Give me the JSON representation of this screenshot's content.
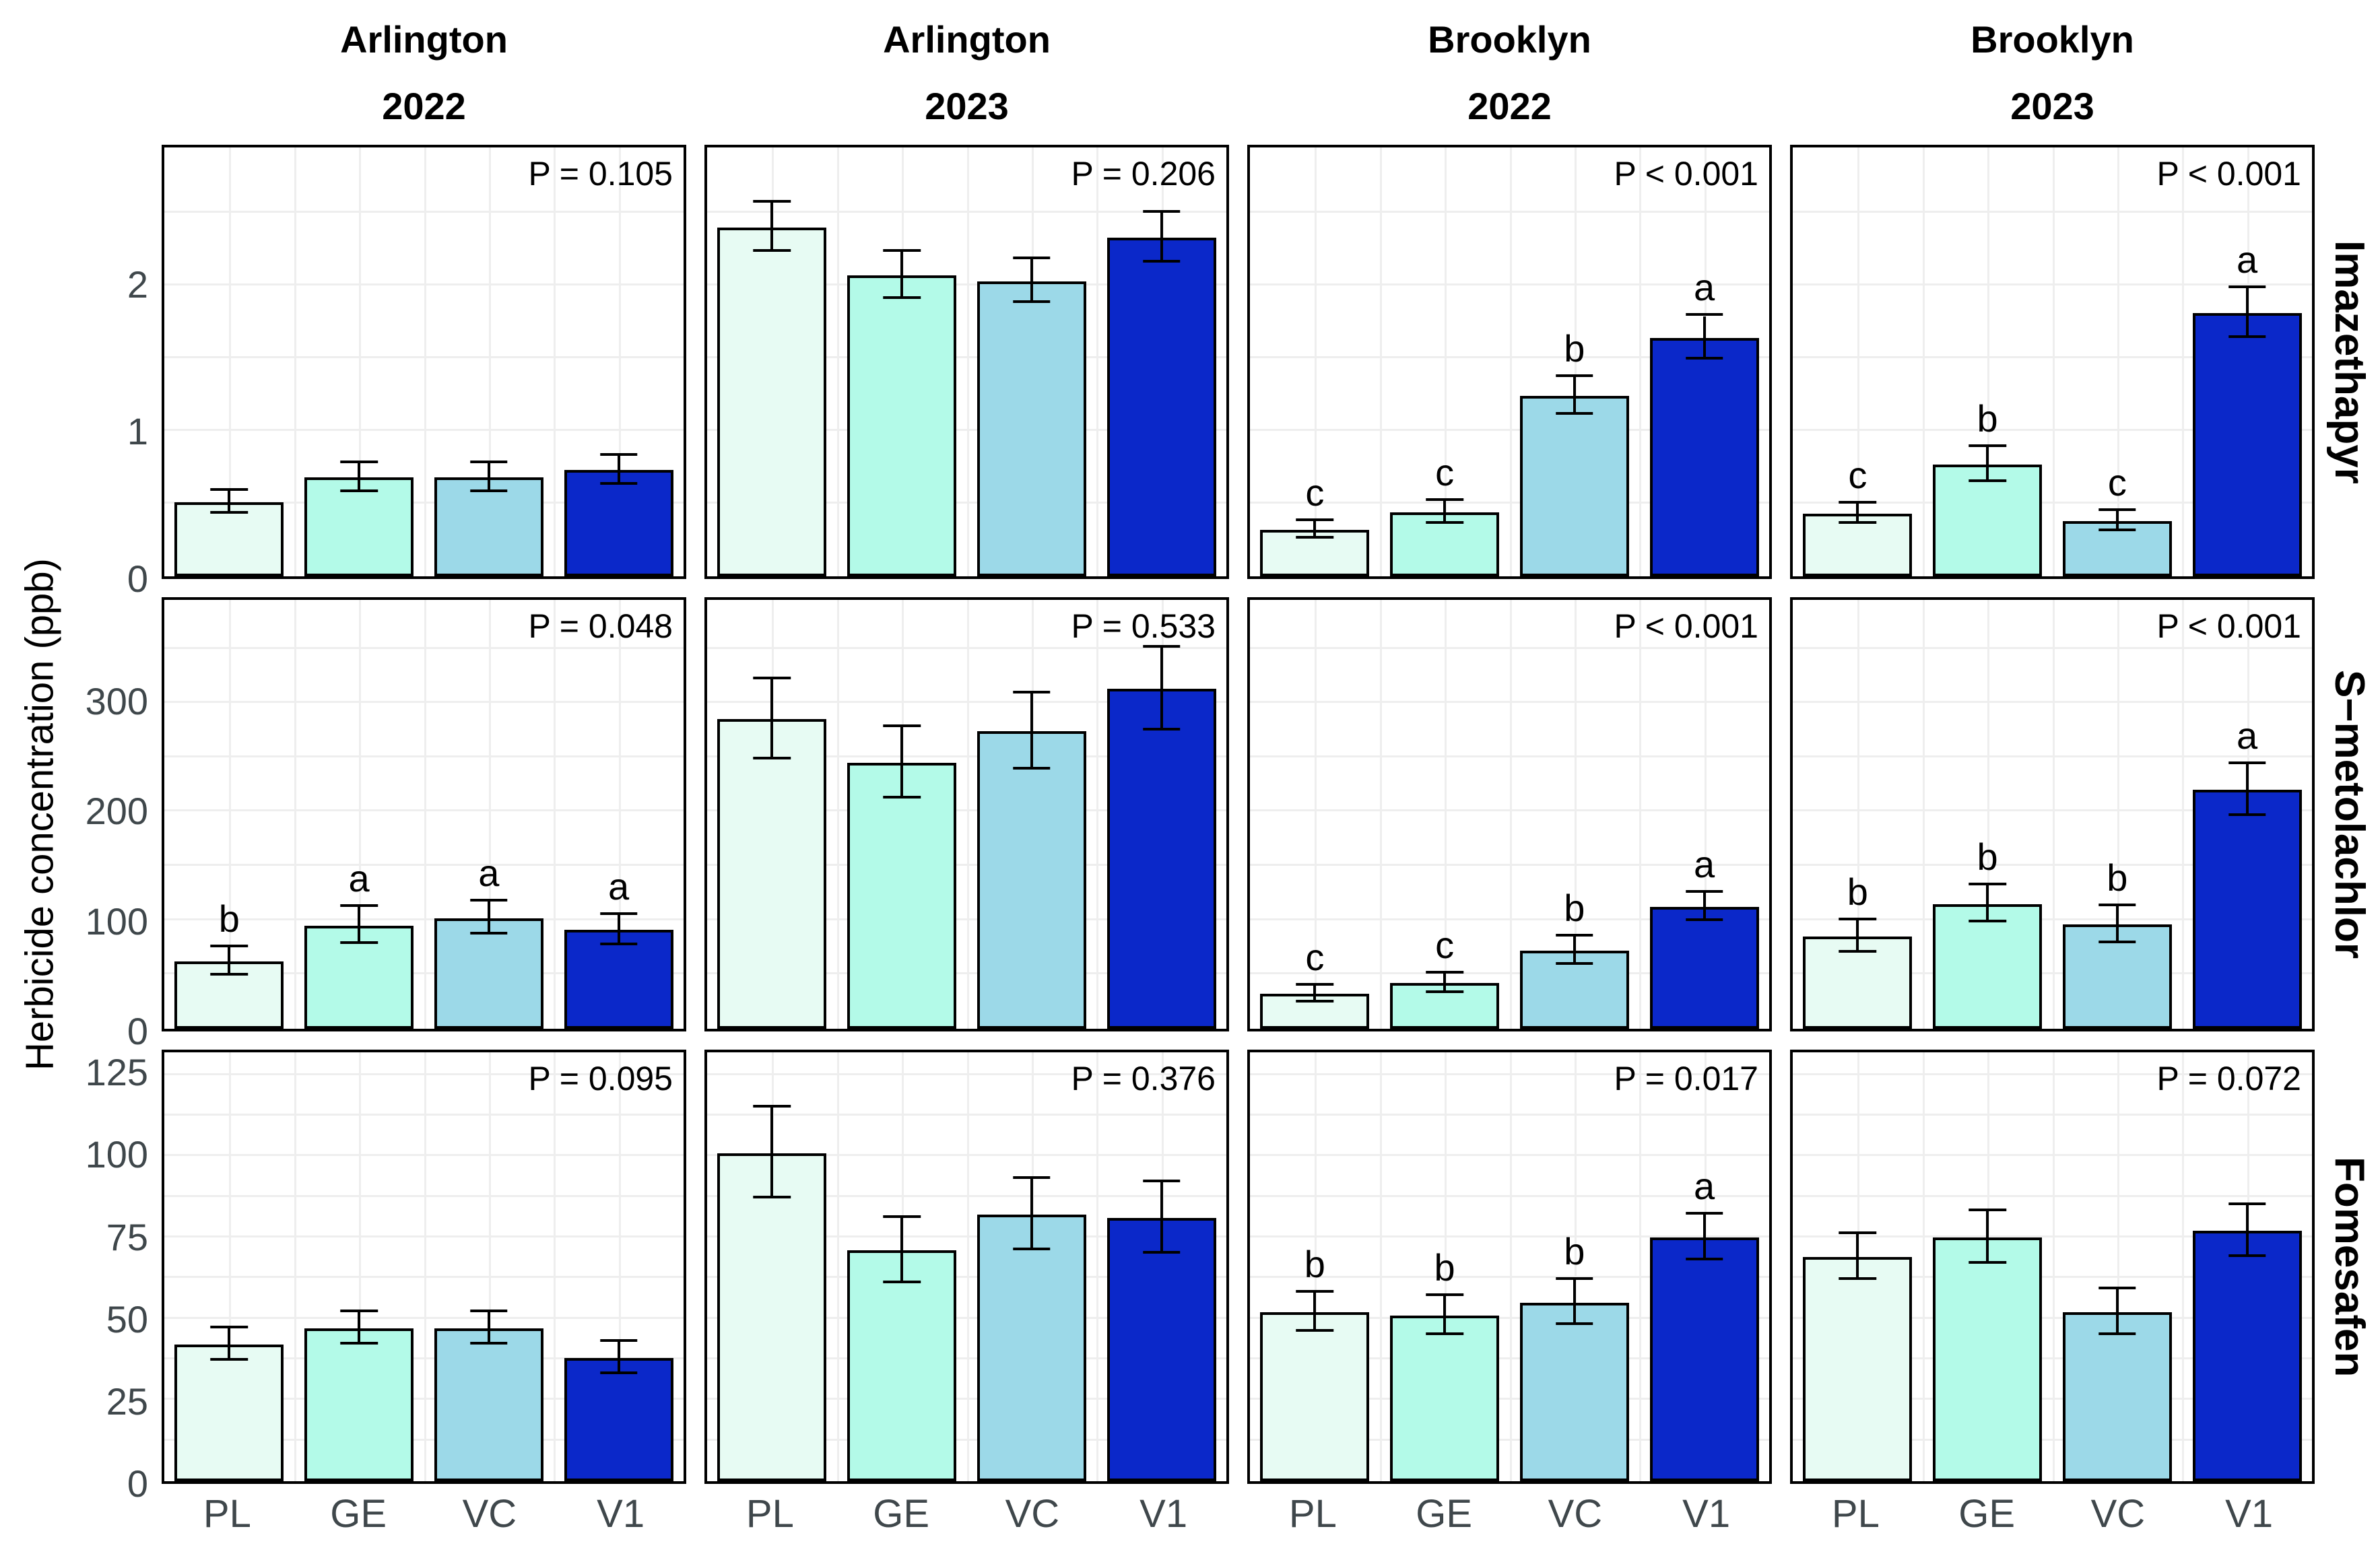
{
  "y_axis_label": "Herbicide concentration (ppb)",
  "x_categories": [
    "PL",
    "GE",
    "VC",
    "V1"
  ],
  "treatment_colors": [
    "#E7FBF3",
    "#B3FAE8",
    "#9CD9E8",
    "#0B28C9"
  ],
  "style": {
    "grid_color": "#EEEEEE",
    "axis_text_color": "#3F474B",
    "bar_border_color": "#000000",
    "panel_border_color": "#000000"
  },
  "columns": [
    {
      "location": "Arlington",
      "year": "2022"
    },
    {
      "location": "Arlington",
      "year": "2023"
    },
    {
      "location": "Brooklyn",
      "year": "2022"
    },
    {
      "location": "Brooklyn",
      "year": "2023"
    }
  ],
  "rows": [
    {
      "label": "Imazethapyr",
      "ymax": 2.95,
      "ticks": [
        "0",
        "1",
        "2"
      ],
      "tick_values": [
        0,
        1,
        2
      ],
      "minor_step": 0.5
    },
    {
      "label": "S−metolachlor",
      "ymax": 395,
      "ticks": [
        "0",
        "100",
        "200",
        "300"
      ],
      "tick_values": [
        0,
        100,
        200,
        300
      ],
      "minor_step": 50
    },
    {
      "label": "Fomesafen",
      "ymax": 132,
      "ticks": [
        "0",
        "25",
        "50",
        "75",
        "100",
        "125"
      ],
      "tick_values": [
        0,
        25,
        50,
        75,
        100,
        125
      ],
      "minor_step": 12.5
    }
  ],
  "chart_data": [
    {
      "type": "bar",
      "facet_row": "Imazethapyr",
      "facet_col": "Arlington 2022",
      "p_label": "P = 0.105",
      "categories": [
        "PL",
        "GE",
        "VC",
        "V1"
      ],
      "values": [
        0.51,
        0.68,
        0.68,
        0.73
      ],
      "errors": [
        0.08,
        0.1,
        0.1,
        0.1
      ],
      "letters": [
        "",
        "",
        "",
        ""
      ]
    },
    {
      "type": "bar",
      "facet_row": "Imazethapyr",
      "facet_col": "Arlington 2023",
      "p_label": "P = 0.206",
      "categories": [
        "PL",
        "GE",
        "VC",
        "V1"
      ],
      "values": [
        2.4,
        2.07,
        2.03,
        2.33
      ],
      "errors": [
        0.17,
        0.16,
        0.15,
        0.17
      ],
      "letters": [
        "",
        "",
        "",
        ""
      ]
    },
    {
      "type": "bar",
      "facet_row": "Imazethapyr",
      "facet_col": "Brooklyn 2022",
      "p_label": "P < 0.001",
      "categories": [
        "PL",
        "GE",
        "VC",
        "V1"
      ],
      "values": [
        0.32,
        0.44,
        1.24,
        1.64
      ],
      "errors": [
        0.06,
        0.08,
        0.13,
        0.15
      ],
      "letters": [
        "c",
        "c",
        "b",
        "a"
      ]
    },
    {
      "type": "bar",
      "facet_row": "Imazethapyr",
      "facet_col": "Brooklyn 2023",
      "p_label": "P < 0.001",
      "categories": [
        "PL",
        "GE",
        "VC",
        "V1"
      ],
      "values": [
        0.43,
        0.77,
        0.38,
        1.81
      ],
      "errors": [
        0.07,
        0.12,
        0.07,
        0.17
      ],
      "letters": [
        "c",
        "b",
        "c",
        "a"
      ]
    },
    {
      "type": "bar",
      "facet_row": "S−metolachlor",
      "facet_col": "Arlington 2022",
      "p_label": "P = 0.048",
      "categories": [
        "PL",
        "GE",
        "VC",
        "V1"
      ],
      "values": [
        62,
        95,
        102,
        91
      ],
      "errors": [
        13,
        17,
        15,
        14
      ],
      "letters": [
        "b",
        "a",
        "a",
        "a"
      ]
    },
    {
      "type": "bar",
      "facet_row": "S−metolachlor",
      "facet_col": "Arlington 2023",
      "p_label": "P = 0.533",
      "categories": [
        "PL",
        "GE",
        "VC",
        "V1"
      ],
      "values": [
        285,
        245,
        274,
        313
      ],
      "errors": [
        37,
        33,
        35,
        38
      ],
      "letters": [
        "",
        "",
        "",
        ""
      ]
    },
    {
      "type": "bar",
      "facet_row": "S−metolachlor",
      "facet_col": "Brooklyn 2022",
      "p_label": "P < 0.001",
      "categories": [
        "PL",
        "GE",
        "VC",
        "V1"
      ],
      "values": [
        32,
        42,
        72,
        112
      ],
      "errors": [
        8,
        9,
        13,
        13
      ],
      "letters": [
        "c",
        "c",
        "b",
        "a"
      ]
    },
    {
      "type": "bar",
      "facet_row": "S−metolachlor",
      "facet_col": "Brooklyn 2023",
      "p_label": "P < 0.001",
      "categories": [
        "PL",
        "GE",
        "VC",
        "V1"
      ],
      "values": [
        85,
        115,
        96,
        220
      ],
      "errors": [
        15,
        17,
        17,
        24
      ],
      "letters": [
        "b",
        "b",
        "b",
        "a"
      ]
    },
    {
      "type": "bar",
      "facet_row": "Fomesafen",
      "facet_col": "Arlington 2022",
      "p_label": "P = 0.095",
      "categories": [
        "PL",
        "GE",
        "VC",
        "V1"
      ],
      "values": [
        42,
        47,
        47,
        38
      ],
      "errors": [
        5,
        5,
        5,
        5
      ],
      "letters": [
        "",
        "",
        "",
        ""
      ]
    },
    {
      "type": "bar",
      "facet_row": "Fomesafen",
      "facet_col": "Arlington 2023",
      "p_label": "P = 0.376",
      "categories": [
        "PL",
        "GE",
        "VC",
        "V1"
      ],
      "values": [
        101,
        71,
        82,
        81
      ],
      "errors": [
        14,
        10,
        11,
        11
      ],
      "letters": [
        "",
        "",
        "",
        ""
      ]
    },
    {
      "type": "bar",
      "facet_row": "Fomesafen",
      "facet_col": "Brooklyn 2022",
      "p_label": "P = 0.017",
      "categories": [
        "PL",
        "GE",
        "VC",
        "V1"
      ],
      "values": [
        52,
        51,
        55,
        75
      ],
      "errors": [
        6,
        6,
        7,
        7
      ],
      "letters": [
        "b",
        "b",
        "b",
        "a"
      ]
    },
    {
      "type": "bar",
      "facet_row": "Fomesafen",
      "facet_col": "Brooklyn 2023",
      "p_label": "P = 0.072",
      "categories": [
        "PL",
        "GE",
        "VC",
        "V1"
      ],
      "values": [
        69,
        75,
        52,
        77
      ],
      "errors": [
        7,
        8,
        7,
        8
      ],
      "letters": [
        "",
        "",
        "",
        ""
      ]
    }
  ]
}
